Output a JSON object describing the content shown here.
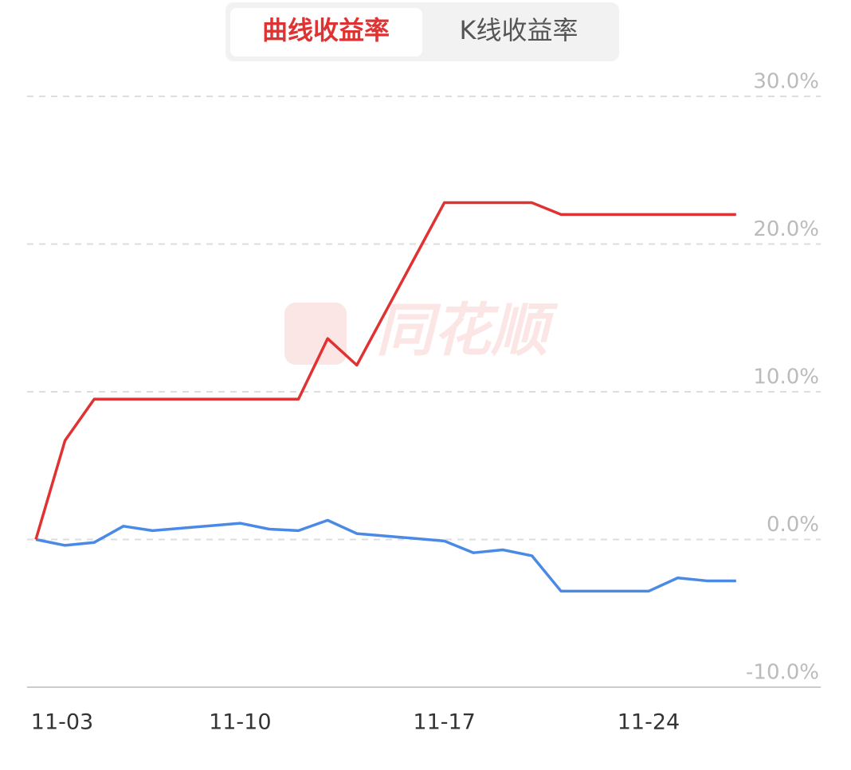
{
  "tabs": [
    "曲线收益率",
    "K线收益率"
  ],
  "watermark": "同花顺",
  "chart_data": {
    "type": "line",
    "x": [
      3,
      4,
      5,
      6,
      7,
      10,
      11,
      12,
      13,
      14,
      17,
      18,
      19,
      20,
      21,
      24,
      25,
      26,
      27
    ],
    "xlim": [
      2.7,
      29.9
    ],
    "xticks": [
      {
        "value": 3,
        "label": "11-03"
      },
      {
        "value": 10,
        "label": "11-10"
      },
      {
        "value": 17,
        "label": "11-17"
      },
      {
        "value": 24,
        "label": "11-24"
      }
    ],
    "ylim": [
      -10,
      30
    ],
    "yticks": [
      {
        "value": -10,
        "label": "-10.0%"
      },
      {
        "value": 0,
        "label": "0.0%"
      },
      {
        "value": 10,
        "label": "10.0%"
      },
      {
        "value": 20,
        "label": "20.0%"
      },
      {
        "value": 30,
        "label": "30.0%"
      }
    ],
    "grid": true,
    "series": [
      {
        "color": "#e03232",
        "values": [
          0,
          6.7,
          9.5,
          9.5,
          9.5,
          9.5,
          9.5,
          9.5,
          13.6,
          11.8,
          22.8,
          22.8,
          22.8,
          22.8,
          22.0,
          22.0,
          22.0,
          22.0,
          22.0
        ]
      },
      {
        "color": "#4a8ae6",
        "values": [
          0,
          -0.4,
          -0.2,
          0.9,
          0.6,
          1.1,
          0.7,
          0.6,
          1.3,
          0.4,
          -0.1,
          -0.9,
          -0.7,
          -1.1,
          -3.5,
          -3.5,
          -2.6,
          -2.8,
          -2.8
        ]
      }
    ]
  }
}
